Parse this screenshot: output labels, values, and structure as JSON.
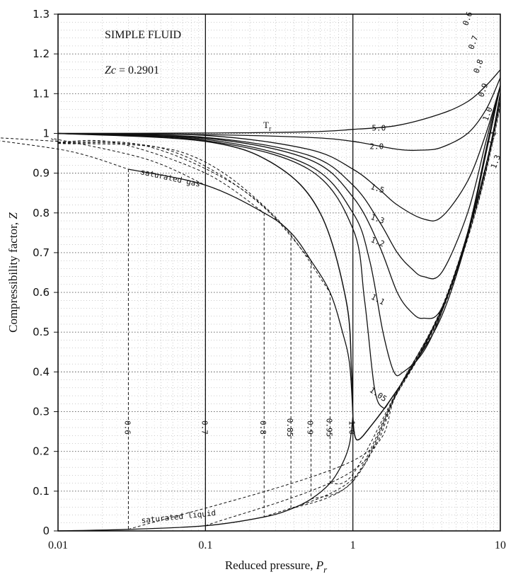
{
  "chart_data": {
    "type": "line",
    "title": "",
    "xlabel": "Reduced pressure, ",
    "xlabel_sub": "P",
    "xlabel_subscript": "r",
    "ylabel": "Compressibility factor, ",
    "ylabel_italic": "Z",
    "x_scale": "log",
    "xlim": [
      0.01,
      10
    ],
    "ylim": [
      0,
      1.3
    ],
    "grid": true,
    "x_tick_labels": [
      "0.01",
      "0.1",
      "1",
      "10"
    ],
    "y_tick_labels": [
      "0",
      "0.1",
      "0.2",
      "0.3",
      "0.4",
      "0.5",
      "0.6",
      "0.7",
      "0.8",
      "0.9",
      "1",
      "1.1",
      "1.2",
      "1.3"
    ],
    "annotations": {
      "fluid": "SIMPLE FLUID",
      "zc_label": "Zc",
      "zc_value": " = 0.2901",
      "tr_symbol": "T",
      "tr_sub": "r",
      "saturated_gas": "saturated gas",
      "saturated_liquid": "saturated liquid"
    },
    "supercritical_isotherms": [
      {
        "label": "5.0",
        "x": [
          0.01,
          0.1,
          0.5,
          1,
          2,
          4,
          6,
          8,
          10
        ],
        "y": [
          1.0,
          1.001,
          1.004,
          1.01,
          1.02,
          1.05,
          1.08,
          1.12,
          1.16
        ]
      },
      {
        "label": "2.0",
        "x": [
          0.01,
          0.1,
          0.5,
          1,
          2,
          3,
          4,
          6,
          8,
          10
        ],
        "y": [
          1.0,
          0.997,
          0.99,
          0.98,
          0.96,
          0.958,
          0.965,
          1.0,
          1.06,
          1.14
        ]
      },
      {
        "label": "1.5",
        "x": [
          0.01,
          0.1,
          0.5,
          1,
          1.5,
          2,
          3,
          4,
          6,
          8,
          10
        ],
        "y": [
          1.0,
          0.995,
          0.96,
          0.91,
          0.86,
          0.82,
          0.785,
          0.79,
          0.88,
          1.0,
          1.12
        ]
      },
      {
        "label": "1.3",
        "x": [
          0.01,
          0.1,
          0.5,
          1,
          1.5,
          2,
          2.5,
          3,
          4,
          6,
          8,
          10
        ],
        "y": [
          1.0,
          0.99,
          0.945,
          0.87,
          0.78,
          0.7,
          0.66,
          0.64,
          0.65,
          0.8,
          0.98,
          1.12
        ]
      },
      {
        "label": "1.2",
        "x": [
          0.01,
          0.1,
          0.5,
          1,
          1.5,
          2,
          2.5,
          3,
          4,
          6,
          8,
          10
        ],
        "y": [
          1.0,
          0.988,
          0.935,
          0.84,
          0.72,
          0.6,
          0.55,
          0.535,
          0.56,
          0.75,
          0.96,
          1.12
        ]
      },
      {
        "label": "1.1",
        "x": [
          0.01,
          0.1,
          0.5,
          1,
          1.3,
          1.6,
          1.9,
          2.2,
          3,
          4,
          6,
          8,
          10
        ],
        "y": [
          1.0,
          0.985,
          0.92,
          0.8,
          0.68,
          0.5,
          0.4,
          0.4,
          0.45,
          0.55,
          0.75,
          0.95,
          1.12
        ]
      },
      {
        "label": "1.05",
        "x": [
          0.01,
          0.1,
          0.5,
          1,
          1.2,
          1.4,
          1.6,
          1.8,
          2.5,
          4,
          6,
          8,
          10
        ],
        "y": [
          1.0,
          0.982,
          0.91,
          0.76,
          0.58,
          0.36,
          0.31,
          0.33,
          0.41,
          0.54,
          0.74,
          0.95,
          1.12
        ]
      }
    ],
    "critical_isotherm": {
      "label": "1.0",
      "x": [
        0.01,
        0.1,
        0.3,
        0.6,
        0.9,
        0.98,
        1.0,
        1.03,
        1.1,
        1.3,
        1.8,
        3,
        5,
        8,
        10
      ],
      "y": [
        1.0,
        0.98,
        0.92,
        0.8,
        0.58,
        0.4,
        0.29,
        0.24,
        0.23,
        0.26,
        0.33,
        0.46,
        0.65,
        0.92,
        1.1
      ]
    },
    "saturated_gas": {
      "x": [
        0.03,
        0.1,
        0.25,
        0.38,
        0.52,
        0.7,
        0.85,
        0.95,
        1.0
      ],
      "y": [
        0.91,
        0.87,
        0.8,
        0.75,
        0.68,
        0.6,
        0.5,
        0.42,
        0.29
      ]
    },
    "saturated_liquid": {
      "x": [
        0.01,
        0.03,
        0.1,
        0.25,
        0.38,
        0.52,
        0.7,
        0.85,
        0.95,
        1.0
      ],
      "y": [
        0.0,
        0.004,
        0.013,
        0.035,
        0.055,
        0.08,
        0.12,
        0.17,
        0.22,
        0.29
      ]
    },
    "subcritical_isotherms": [
      {
        "label": "0.6",
        "x_sat": 0.03,
        "x_high": 10,
        "y_high": 1.13
      },
      {
        "label": "0.7",
        "x_sat": 0.1,
        "x_high": 10,
        "y_high": 1.13
      },
      {
        "label": "0.8",
        "x_sat": 0.25,
        "x_high": 10,
        "y_high": 1.12
      },
      {
        "label": "0.85",
        "x_sat": 0.38,
        "x_high": 10,
        "y_high": 1.12
      },
      {
        "label": "0.9",
        "x_sat": 0.52,
        "x_high": 10,
        "y_high": 1.12
      },
      {
        "label": "0.95",
        "x_sat": 0.7,
        "x_high": 10,
        "y_high": 1.12
      }
    ],
    "upper_right_labels": [
      "0.6",
      "0.7",
      "0.8",
      "0.9",
      "1.0",
      "1.1",
      "1.3"
    ]
  }
}
